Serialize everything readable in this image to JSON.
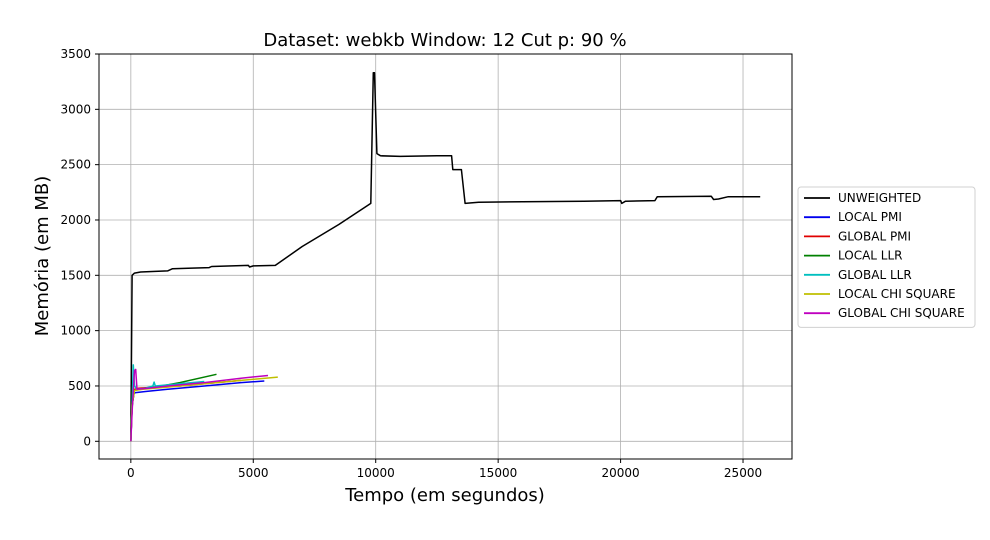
{
  "chart_data": {
    "type": "line",
    "title": "Dataset: webkb Window: 12 Cut p: 90 %",
    "xlabel": "Tempo (em segundos)",
    "ylabel": "Memória (em MB)",
    "xlim": [
      -1300,
      27000
    ],
    "ylim": [
      -160,
      3500
    ],
    "xticks": [
      0,
      5000,
      10000,
      15000,
      20000,
      25000
    ],
    "yticks": [
      0,
      500,
      1000,
      1500,
      2000,
      2500,
      3000,
      3500
    ],
    "grid": true,
    "legend_position": "right",
    "series": [
      {
        "name": "UNWEIGHTED",
        "color": "#000000",
        "points": [
          [
            0,
            0
          ],
          [
            50,
            1500
          ],
          [
            150,
            1520
          ],
          [
            400,
            1530
          ],
          [
            1000,
            1535
          ],
          [
            1500,
            1540
          ],
          [
            1700,
            1560
          ],
          [
            2500,
            1565
          ],
          [
            3200,
            1570
          ],
          [
            3300,
            1580
          ],
          [
            4800,
            1590
          ],
          [
            4850,
            1575
          ],
          [
            5000,
            1585
          ],
          [
            5900,
            1590
          ],
          [
            7000,
            1760
          ],
          [
            8500,
            1960
          ],
          [
            9800,
            2150
          ],
          [
            9900,
            3330
          ],
          [
            9950,
            3330
          ],
          [
            10050,
            2600
          ],
          [
            10200,
            2580
          ],
          [
            11000,
            2575
          ],
          [
            12500,
            2580
          ],
          [
            13100,
            2580
          ],
          [
            13150,
            2455
          ],
          [
            13500,
            2455
          ],
          [
            13650,
            2150
          ],
          [
            14200,
            2160
          ],
          [
            16000,
            2165
          ],
          [
            18500,
            2170
          ],
          [
            20000,
            2175
          ],
          [
            20050,
            2150
          ],
          [
            20200,
            2170
          ],
          [
            21400,
            2175
          ],
          [
            21500,
            2210
          ],
          [
            23700,
            2215
          ],
          [
            23800,
            2185
          ],
          [
            24000,
            2190
          ],
          [
            24400,
            2210
          ],
          [
            25700,
            2210
          ]
        ]
      },
      {
        "name": "LOCAL PMI",
        "color": "#0000ee",
        "points": [
          [
            0,
            0
          ],
          [
            50,
            300
          ],
          [
            100,
            430
          ],
          [
            200,
            440
          ],
          [
            600,
            450
          ],
          [
            1500,
            470
          ],
          [
            3000,
            500
          ],
          [
            4500,
            530
          ],
          [
            5450,
            545
          ]
        ]
      },
      {
        "name": "GLOBAL PMI",
        "color": "#e00000",
        "points": [
          [
            0,
            0
          ],
          [
            50,
            320
          ],
          [
            150,
            470
          ],
          [
            300,
            480
          ],
          [
            1000,
            490
          ],
          [
            2000,
            500
          ],
          [
            3000,
            520
          ],
          [
            4500,
            550
          ]
        ]
      },
      {
        "name": "LOCAL LLR",
        "color": "#008000",
        "points": [
          [
            0,
            0
          ],
          [
            50,
            320
          ],
          [
            150,
            460
          ],
          [
            400,
            470
          ],
          [
            1000,
            490
          ],
          [
            2000,
            530
          ],
          [
            3500,
            605
          ]
        ]
      },
      {
        "name": "GLOBAL LLR",
        "color": "#00bfbf",
        "points": [
          [
            0,
            0
          ],
          [
            50,
            350
          ],
          [
            100,
            690
          ],
          [
            150,
            500
          ],
          [
            250,
            470
          ],
          [
            600,
            480
          ],
          [
            900,
            500
          ],
          [
            950,
            535
          ],
          [
            1000,
            500
          ],
          [
            2000,
            520
          ],
          [
            3000,
            540
          ]
        ]
      },
      {
        "name": "LOCAL CHI SQUARE",
        "color": "#bfbf00",
        "points": [
          [
            0,
            0
          ],
          [
            50,
            330
          ],
          [
            150,
            460
          ],
          [
            500,
            470
          ],
          [
            1500,
            490
          ],
          [
            3000,
            520
          ],
          [
            4500,
            550
          ],
          [
            6000,
            580
          ]
        ]
      },
      {
        "name": "GLOBAL CHI SQUARE",
        "color": "#bf00bf",
        "points": [
          [
            0,
            0
          ],
          [
            60,
            300
          ],
          [
            150,
            640
          ],
          [
            200,
            650
          ],
          [
            250,
            470
          ],
          [
            700,
            480
          ],
          [
            1500,
            500
          ],
          [
            3000,
            530
          ],
          [
            4500,
            570
          ],
          [
            5600,
            595
          ]
        ]
      }
    ]
  }
}
